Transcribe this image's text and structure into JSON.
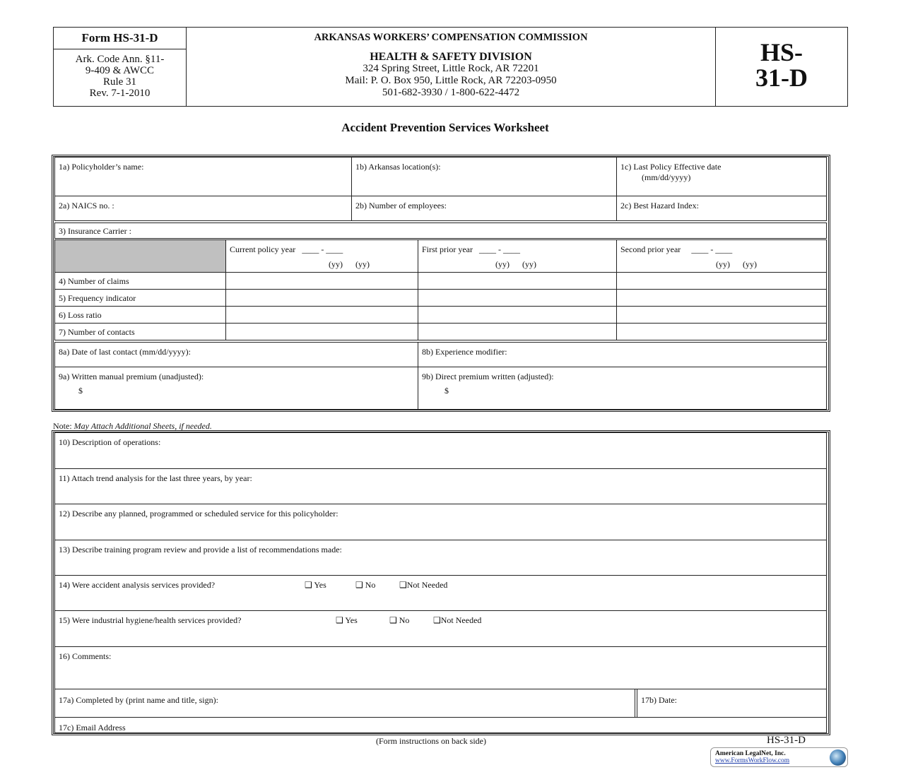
{
  "header": {
    "form_id": "Form HS-31-D",
    "code_lines": [
      "Ark. Code Ann. §11-",
      "9-409 & AWCC",
      "Rule 31",
      "Rev. 7-1-2010"
    ],
    "agency": "ARKANSAS WORKERS’ COMPENSATION COMMISSION",
    "division": "HEALTH & SAFETY DIVISION",
    "address": "324 Spring Street, Little Rock, AR 72201",
    "mail": "Mail:  P. O. Box 950, Little Rock, AR 72203-0950",
    "phone": "501-682-3930 / 1-800-622-4472",
    "big_id_1": "HS-",
    "big_id_2": "31-D"
  },
  "title": "Accident Prevention Services Worksheet",
  "section1": {
    "f1a": "1a) Policyholder’s name:",
    "f1b": "1b)  Arkansas location(s):",
    "f1c": "1c)  Last Policy  Effective date",
    "f1c_fmt": "(mm/dd/yyyy)",
    "f2a": "2a) NAICS no. :",
    "f2b": "2b)  Number of employees:",
    "f2c": "2c)  Best Hazard Index:",
    "f3": "3)  Insurance Carrier :",
    "years": [
      {
        "label": "Current policy year",
        "blank": "____  - ____",
        "yy": "(yy)      (yy)"
      },
      {
        "label": "First prior year",
        "blank": "____  - ____",
        "yy": "(yy)      (yy)"
      },
      {
        "label": "Second prior year",
        "blank": "____  - ____",
        "yy": "(yy)      (yy)"
      }
    ],
    "rows": [
      "4)  Number of claims",
      "5)  Frequency indicator",
      "6)  Loss ratio",
      "7)  Number of contacts"
    ],
    "f8a": "8a)  Date of last contact (mm/dd/yyyy):",
    "f8b": "8b)  Experience modifier:",
    "f9a": "9a)  Written manual premium (unadjusted):",
    "f9b": "9b)  Direct premium written (adjusted):",
    "dollar": "$"
  },
  "note": {
    "prefix": "Note: ",
    "text": "May Attach Additional Sheets, if needed."
  },
  "section2": {
    "f10": "10) Description of operations:",
    "f11": "11) Attach trend analysis for the last three years, by year:",
    "f12": "12) Describe any planned, programmed or scheduled service for this policyholder:",
    "f13": "13)  Describe training program review and provide a list of recommendations made:",
    "f14": "14)  Were accident analysis services provided?",
    "f15": "15)  Were industrial hygiene/health services provided?",
    "opt_yes": "❑ Yes",
    "opt_no": "❑ No",
    "opt_nn": "❑Not Needed",
    "f16": "16)  Comments:",
    "f17a": "17a)  Completed by (print name and title, sign):",
    "f17b": "17b)  Date:",
    "f17c": "17c)  Email Address"
  },
  "footer": {
    "instructions": "(Form instructions on back side)",
    "form_id": "HS-31-D",
    "logo_name": "American LegalNet, Inc.",
    "logo_url": "www.FormsWorkFlow.com"
  }
}
